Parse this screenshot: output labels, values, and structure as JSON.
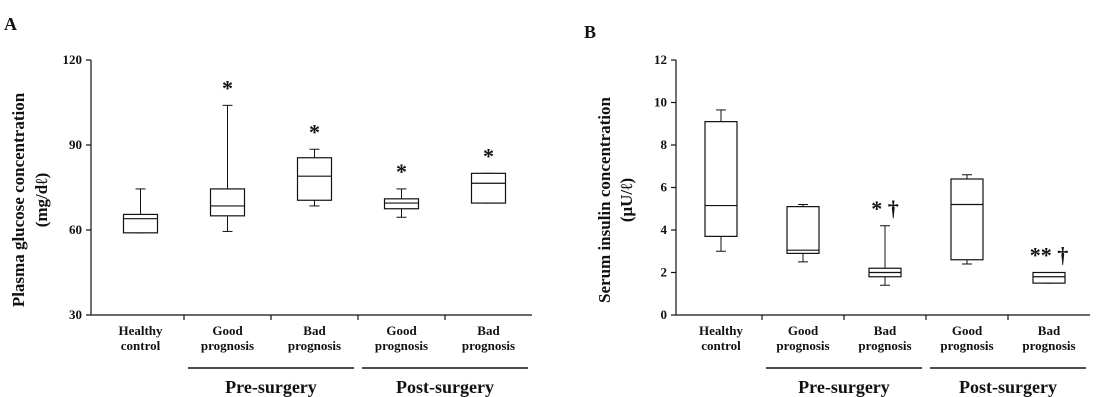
{
  "chart_data": [
    {
      "type": "box",
      "panel_label": "A",
      "ylabel_line1": "Plasma glucose concentration",
      "ylabel_line2": "(mg/dℓ)",
      "ylim": [
        30,
        120
      ],
      "yticks": [
        30,
        60,
        90,
        120
      ],
      "categories": [
        {
          "line1": "Healthy",
          "line2": "control"
        },
        {
          "line1": "Good",
          "line2": "prognosis"
        },
        {
          "line1": "Bad",
          "line2": "prognosis"
        },
        {
          "line1": "Good",
          "line2": "prognosis"
        },
        {
          "line1": "Bad",
          "line2": "prognosis"
        }
      ],
      "boxes": [
        {
          "min": 59,
          "q1": 59,
          "median": 64,
          "q3": 65.5,
          "max": 74.5
        },
        {
          "min": 59.5,
          "q1": 65,
          "median": 68.5,
          "q3": 74.5,
          "max": 104
        },
        {
          "min": 68.5,
          "q1": 70.5,
          "median": 79,
          "q3": 85.5,
          "max": 88.5
        },
        {
          "min": 64.5,
          "q1": 67.5,
          "median": 69.5,
          "q3": 71,
          "max": 74.5
        },
        {
          "min": 69.5,
          "q1": 69.5,
          "median": 76.5,
          "q3": 80,
          "max": 80
        }
      ],
      "annotations": [
        "",
        "*",
        "*",
        "*",
        "*"
      ],
      "groups": [
        {
          "label": "Pre-surgery",
          "from": 1,
          "to": 2
        },
        {
          "label": "Post-surgery",
          "from": 3,
          "to": 4
        }
      ]
    },
    {
      "type": "box",
      "panel_label": "B",
      "ylabel_line1": "Serum insulin concentration",
      "ylabel_line2": "(μU/ℓ)",
      "ylim": [
        0,
        12
      ],
      "yticks": [
        0,
        2,
        4,
        6,
        8,
        10,
        12
      ],
      "categories": [
        {
          "line1": "Healthy",
          "line2": "control"
        },
        {
          "line1": "Good",
          "line2": "prognosis"
        },
        {
          "line1": "Bad",
          "line2": "prognosis"
        },
        {
          "line1": "Good",
          "line2": "prognosis"
        },
        {
          "line1": "Bad",
          "line2": "prognosis"
        }
      ],
      "boxes": [
        {
          "min": 3.0,
          "q1": 3.7,
          "median": 5.15,
          "q3": 9.1,
          "max": 9.65
        },
        {
          "min": 2.5,
          "q1": 2.9,
          "median": 3.05,
          "q3": 5.1,
          "max": 5.2
        },
        {
          "min": 1.4,
          "q1": 1.8,
          "median": 2.0,
          "q3": 2.2,
          "max": 4.2
        },
        {
          "min": 2.4,
          "q1": 2.6,
          "median": 5.2,
          "q3": 6.4,
          "max": 6.6
        },
        {
          "min": 1.5,
          "q1": 1.5,
          "median": 1.8,
          "q3": 2.0,
          "max": 2.0
        }
      ],
      "annotations": [
        "",
        "",
        "* †",
        "",
        "** †"
      ],
      "groups": [
        {
          "label": "Pre-surgery",
          "from": 1,
          "to": 2
        },
        {
          "label": "Post-surgery",
          "from": 3,
          "to": 4
        }
      ]
    }
  ]
}
